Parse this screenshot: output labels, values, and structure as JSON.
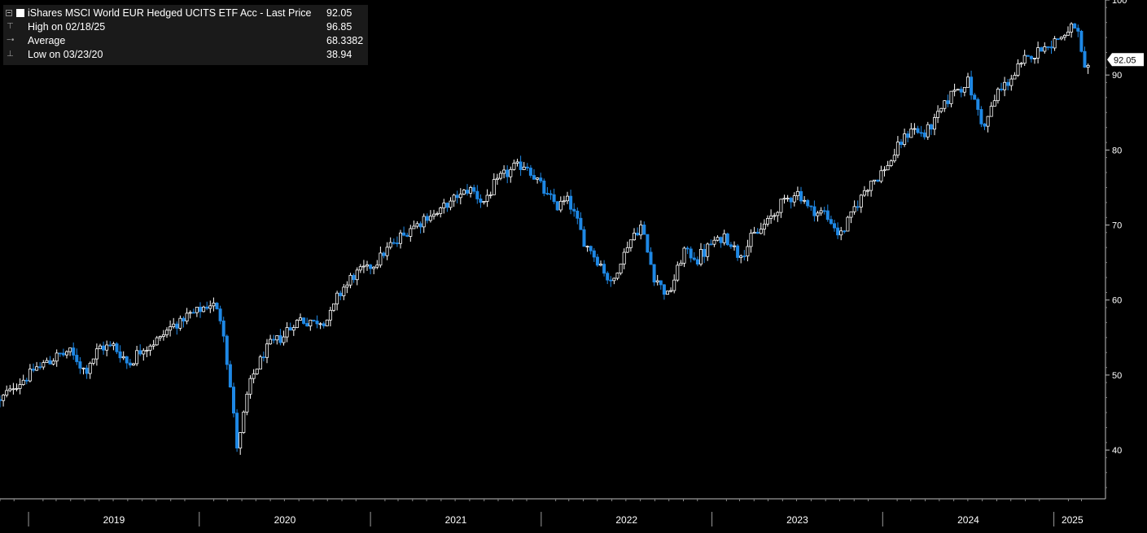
{
  "legend": {
    "title": "iShares MSCI World EUR Hedged UCITS ETF Acc - Last Price",
    "title_value": "92.05",
    "high_label": "High on 02/18/25",
    "high_value": "96.85",
    "avg_label": "Average",
    "avg_value": "68.3382",
    "low_label": "Low on 03/23/20",
    "low_value": "38.94"
  },
  "colors": {
    "background": "#000000",
    "up": "#ffffff",
    "down": "#1e88e5"
  },
  "chart_data": {
    "type": "candlestick",
    "title": "iShares MSCI World EUR Hedged UCITS ETF Acc - Last Price",
    "last_price": 92.05,
    "x_labels": [
      "2019",
      "2020",
      "2021",
      "2022",
      "2023",
      "2024",
      "2025"
    ],
    "y_ticks": [
      40,
      50,
      60,
      70,
      80,
      90,
      100
    ],
    "ylim": [
      33.5,
      100
    ],
    "xlim": [
      "2018-11-01",
      "2025-03-21"
    ],
    "grid": false,
    "series": [
      {
        "x": [
          "2018-11-01",
          "2018-12-01",
          "2019-01-01",
          "2019-02-01",
          "2019-03-01",
          "2019-04-01",
          "2019-05-01",
          "2019-06-01",
          "2019-07-01",
          "2019-08-01",
          "2019-09-01",
          "2019-10-01",
          "2019-11-01",
          "2019-12-01",
          "2020-01-01",
          "2020-02-01",
          "2020-02-20",
          "2020-03-23",
          "2020-04-15",
          "2020-05-01",
          "2020-06-01",
          "2020-07-01",
          "2020-08-01",
          "2020-09-01",
          "2020-10-01",
          "2020-11-01",
          "2020-12-01",
          "2021-01-01",
          "2021-02-01",
          "2021-03-01",
          "2021-04-01",
          "2021-05-01",
          "2021-06-01",
          "2021-07-01",
          "2021-08-01",
          "2021-09-01",
          "2021-10-01",
          "2021-11-01",
          "2021-12-01",
          "2022-01-01",
          "2022-02-01",
          "2022-03-01",
          "2022-04-01",
          "2022-05-01",
          "2022-06-01",
          "2022-07-01",
          "2022-08-01",
          "2022-09-01",
          "2022-10-01",
          "2022-11-01",
          "2022-12-01",
          "2023-01-01",
          "2023-02-01",
          "2023-03-01",
          "2023-04-01",
          "2023-05-01",
          "2023-06-01",
          "2023-07-01",
          "2023-08-01",
          "2023-09-01",
          "2023-10-01",
          "2023-11-01",
          "2023-12-01",
          "2024-01-01",
          "2024-02-01",
          "2024-03-01",
          "2024-04-01",
          "2024-05-01",
          "2024-06-01",
          "2024-07-01",
          "2024-08-05",
          "2024-09-01",
          "2024-10-01",
          "2024-11-01",
          "2024-12-01",
          "2025-01-01",
          "2025-02-18",
          "2025-03-10",
          "2025-03-21"
        ],
        "y": [
          46.5,
          48.5,
          50.0,
          51.5,
          52.5,
          53.0,
          50.5,
          53.5,
          54.0,
          51.5,
          53.5,
          54.5,
          56.5,
          57.5,
          58.5,
          59.5,
          57.0,
          40.0,
          48.0,
          51.0,
          54.0,
          55.5,
          57.5,
          57.0,
          57.5,
          61.5,
          63.5,
          64.5,
          66.5,
          68.0,
          70.0,
          71.0,
          72.0,
          73.5,
          75.0,
          73.0,
          76.0,
          77.5,
          78.0,
          75.0,
          72.5,
          73.5,
          68.0,
          65.5,
          62.0,
          67.0,
          70.0,
          63.0,
          60.5,
          66.5,
          65.5,
          67.5,
          68.5,
          66.0,
          68.5,
          70.5,
          73.0,
          74.5,
          72.0,
          71.5,
          68.5,
          72.0,
          75.5,
          77.0,
          80.0,
          83.0,
          82.0,
          85.0,
          88.0,
          89.0,
          83.0,
          87.5,
          89.5,
          92.0,
          93.5,
          94.5,
          96.5,
          89.5,
          92.05
        ]
      }
    ]
  }
}
